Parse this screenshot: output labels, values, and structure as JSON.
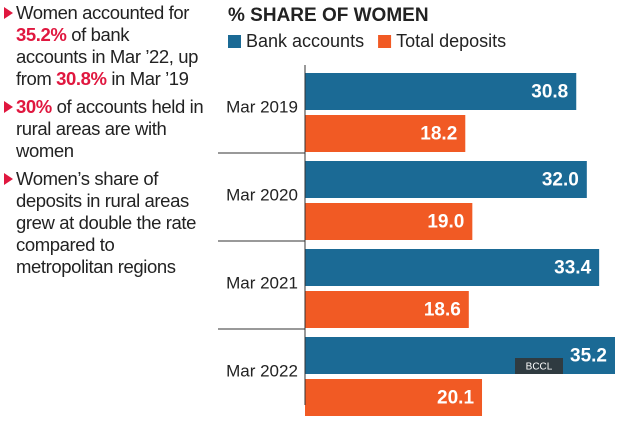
{
  "notes": [
    [
      {
        "text": "Women accounted for "
      },
      {
        "text": "35.2%",
        "highlight": true
      },
      {
        "text": " of bank accounts in Mar ’22, up from "
      },
      {
        "text": "30.8%",
        "highlight": true
      },
      {
        "text": " in Mar ’19"
      }
    ],
    [
      {
        "text": "30%",
        "highlight": true
      },
      {
        "text": " of accounts held in rural areas are with women"
      }
    ],
    [
      {
        "text": "Women’s share of deposits in rural areas grew at double the rate compared to metropolitan regions"
      }
    ]
  ],
  "watermark": "BCCL",
  "chart_data": {
    "type": "hbar",
    "title": "% SHARE OF WOMEN",
    "categories": [
      "Mar 2019",
      "Mar 2020",
      "Mar 2021",
      "Mar 2022"
    ],
    "series": [
      {
        "name": "Bank accounts",
        "color": "#1b6a95",
        "values": [
          30.8,
          32.0,
          33.4,
          35.2
        ],
        "value_labels": [
          "30.8",
          "32.0",
          "33.4",
          "35.2"
        ]
      },
      {
        "name": "Total deposits",
        "color": "#f15a24",
        "values": [
          18.2,
          19.0,
          18.6,
          20.1
        ],
        "value_labels": [
          "18.2",
          "19.0",
          "18.6",
          "20.1"
        ]
      }
    ],
    "legend": "top",
    "highlight_color": "#e0173f"
  }
}
